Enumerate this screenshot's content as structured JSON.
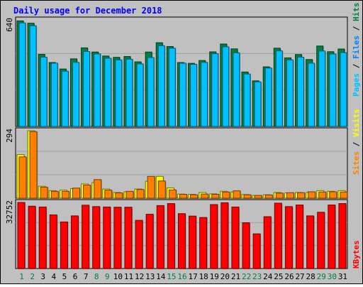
{
  "chart_data": [
    {
      "type": "bar",
      "panel": "pages-files-hits",
      "title": "Daily usage for December 2018",
      "y_max_label": "640",
      "ylim": [
        0,
        640
      ],
      "right_labels": [
        "Pages",
        "Files",
        "Hits"
      ],
      "x": [
        "1",
        "2",
        "3",
        "4",
        "5",
        "6",
        "7",
        "8",
        "9",
        "10",
        "11",
        "12",
        "13",
        "14",
        "15",
        "16",
        "17",
        "18",
        "19",
        "20",
        "21",
        "22",
        "23",
        "24",
        "25",
        "26",
        "27",
        "28",
        "29",
        "30",
        "31"
      ],
      "weekend_days": [
        "1",
        "2",
        "8",
        "9",
        "15",
        "16",
        "22",
        "23",
        "29",
        "30"
      ],
      "series": [
        {
          "name": "Hits",
          "color": "#008040",
          "values": [
            634,
            620,
            433,
            384,
            345,
            406,
            472,
            447,
            423,
            415,
            420,
            388,
            447,
            503,
            480,
            384,
            379,
            396,
            448,
            495,
            466,
            327,
            274,
            358,
            470,
            412,
            432,
            402,
            483,
            449,
            465
          ]
        },
        {
          "name": "Files",
          "color": "#00C0FF",
          "values": [
            622,
            605,
            416,
            380,
            332,
            385,
            450,
            436,
            410,
            400,
            404,
            376,
            414,
            485,
            470,
            380,
            373,
            385,
            437,
            478,
            442,
            315,
            268,
            351,
            454,
            400,
            416,
            380,
            453,
            435,
            443
          ]
        },
        {
          "name": "Pages",
          "color": "#00C0FF",
          "values": [
            0,
            0,
            0,
            0,
            0,
            0,
            0,
            0,
            0,
            0,
            0,
            0,
            0,
            0,
            0,
            0,
            0,
            0,
            0,
            0,
            0,
            0,
            0,
            0,
            0,
            0,
            0,
            0,
            0,
            0,
            0
          ]
        }
      ]
    },
    {
      "type": "bar",
      "panel": "visits-sites",
      "y_max_label": "294",
      "ylim": [
        0,
        294
      ],
      "right_labels": [
        "Sites",
        "Visits"
      ],
      "x": [
        "1",
        "2",
        "3",
        "4",
        "5",
        "6",
        "7",
        "8",
        "9",
        "10",
        "11",
        "12",
        "13",
        "14",
        "15",
        "16",
        "17",
        "18",
        "19",
        "20",
        "21",
        "22",
        "23",
        "24",
        "25",
        "26",
        "27",
        "28",
        "29",
        "30",
        "31"
      ],
      "series": [
        {
          "name": "Visits",
          "color": "#FFFF00",
          "values": [
            190,
            294,
            52,
            33,
            35,
            42,
            62,
            68,
            40,
            25,
            28,
            40,
            74,
            95,
            45,
            18,
            17,
            25,
            19,
            30,
            27,
            16,
            12,
            15,
            25,
            23,
            25,
            25,
            33,
            30,
            33
          ]
        },
        {
          "name": "Sites",
          "color": "#FF8000",
          "values": [
            180,
            290,
            48,
            30,
            30,
            44,
            57,
            81,
            35,
            23,
            30,
            38,
            95,
            75,
            36,
            17,
            15,
            18,
            17,
            27,
            32,
            15,
            12,
            14,
            22,
            24,
            24,
            28,
            27,
            28,
            27
          ]
        }
      ]
    },
    {
      "type": "bar",
      "panel": "kbytes",
      "y_max_label": "32752",
      "ylim": [
        0,
        32752
      ],
      "right_labels": [
        "KBytes"
      ],
      "x": [
        "1",
        "2",
        "3",
        "4",
        "5",
        "6",
        "7",
        "8",
        "9",
        "10",
        "11",
        "12",
        "13",
        "14",
        "15",
        "16",
        "17",
        "18",
        "19",
        "20",
        "21",
        "22",
        "23",
        "24",
        "25",
        "26",
        "27",
        "28",
        "29",
        "30",
        "31"
      ],
      "series": [
        {
          "name": "KBytes",
          "color": "#FF0000",
          "values": [
            32752,
            30900,
            30500,
            26600,
            23100,
            26100,
            31400,
            30700,
            30500,
            30400,
            30400,
            23900,
            26900,
            31200,
            32200,
            27200,
            26000,
            25300,
            31700,
            32600,
            30500,
            22700,
            17200,
            25700,
            32400,
            30700,
            31500,
            26100,
            27900,
            31500,
            32200
          ]
        }
      ]
    }
  ],
  "colors": {
    "background": "#C0C0C0",
    "title": "#0000FF",
    "weekend_day": "#008040",
    "weekday": "#000000",
    "pages_label": "#00C0FF",
    "files_label": "#0080FF",
    "hits_label": "#008040",
    "sites_label": "#FF8000",
    "visits_label": "#FFFF00",
    "kbytes_label": "#FF0000"
  }
}
